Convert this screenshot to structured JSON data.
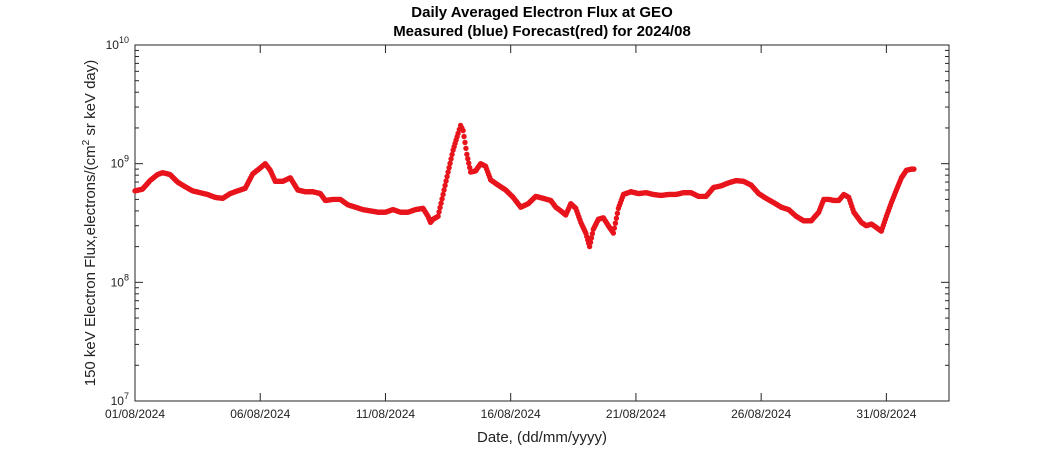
{
  "chart_data": {
    "type": "scatter",
    "title_line1": "Daily Averaged Electron Flux at GEO",
    "title_line2": "Measured (blue) Forecast(red) for 2024/08",
    "xlabel": "Date, (dd/mm/yyyy)",
    "ylabel": "150 keV Electron Flux,electrons/(cm² sr keV day)",
    "ylabel_parts": {
      "before": "150 keV Electron Flux,electrons/(cm",
      "sup": "2",
      "after": " sr keV day)"
    },
    "y_scale": "log",
    "ylim": [
      10000000,
      10000000000
    ],
    "y_ticks": [
      {
        "value": 10000000,
        "base": "10",
        "exp": "7"
      },
      {
        "value": 100000000,
        "base": "10",
        "exp": "8"
      },
      {
        "value": 1000000000,
        "base": "10",
        "exp": "9"
      },
      {
        "value": 10000000000,
        "base": "10",
        "exp": "10"
      }
    ],
    "x_unit": "day of August 2024",
    "xlim": [
      1,
      33.5
    ],
    "x_ticks": [
      {
        "value": 1,
        "label": "01/08/2024"
      },
      {
        "value": 6,
        "label": "06/08/2024"
      },
      {
        "value": 11,
        "label": "11/08/2024"
      },
      {
        "value": 16,
        "label": "16/08/2024"
      },
      {
        "value": 21,
        "label": "21/08/2024"
      },
      {
        "value": 26,
        "label": "26/08/2024"
      },
      {
        "value": 31,
        "label": "31/08/2024"
      }
    ],
    "grid": false,
    "series": [
      {
        "color": "#e8141c",
        "points": [
          [
            1.0,
            590000000.0
          ],
          [
            1.3,
            610000000.0
          ],
          [
            1.6,
            720000000.0
          ],
          [
            1.9,
            810000000.0
          ],
          [
            2.1,
            840000000.0
          ],
          [
            2.4,
            810000000.0
          ],
          [
            2.7,
            700000000.0
          ],
          [
            3.0,
            640000000.0
          ],
          [
            3.3,
            590000000.0
          ],
          [
            3.6,
            570000000.0
          ],
          [
            3.9,
            550000000.0
          ],
          [
            4.2,
            520000000.0
          ],
          [
            4.5,
            510000000.0
          ],
          [
            4.8,
            560000000.0
          ],
          [
            5.1,
            590000000.0
          ],
          [
            5.4,
            620000000.0
          ],
          [
            5.7,
            820000000.0
          ],
          [
            6.0,
            920000000.0
          ],
          [
            6.2,
            1000000000.0
          ],
          [
            6.4,
            880000000.0
          ],
          [
            6.6,
            710000000.0
          ],
          [
            6.9,
            710000000.0
          ],
          [
            7.2,
            760000000.0
          ],
          [
            7.5,
            600000000.0
          ],
          [
            7.8,
            580000000.0
          ],
          [
            8.1,
            580000000.0
          ],
          [
            8.4,
            560000000.0
          ],
          [
            8.6,
            490000000.0
          ],
          [
            8.9,
            500000000.0
          ],
          [
            9.2,
            500000000.0
          ],
          [
            9.5,
            450000000.0
          ],
          [
            9.8,
            430000000.0
          ],
          [
            10.1,
            410000000.0
          ],
          [
            10.4,
            400000000.0
          ],
          [
            10.7,
            390000000.0
          ],
          [
            11.0,
            390000000.0
          ],
          [
            11.3,
            410000000.0
          ],
          [
            11.6,
            390000000.0
          ],
          [
            11.9,
            390000000.0
          ],
          [
            12.2,
            410000000.0
          ],
          [
            12.5,
            420000000.0
          ],
          [
            12.7,
            360000000.0
          ],
          [
            12.8,
            320000000.0
          ],
          [
            12.9,
            340000000.0
          ],
          [
            13.1,
            360000000.0
          ],
          [
            13.3,
            550000000.0
          ],
          [
            13.5,
            850000000.0
          ],
          [
            13.7,
            1300000000.0
          ],
          [
            13.9,
            1800000000.0
          ],
          [
            14.0,
            2100000000.0
          ],
          [
            14.1,
            1900000000.0
          ],
          [
            14.25,
            1200000000.0
          ],
          [
            14.4,
            850000000.0
          ],
          [
            14.6,
            870000000.0
          ],
          [
            14.8,
            1000000000.0
          ],
          [
            15.0,
            950000000.0
          ],
          [
            15.2,
            730000000.0
          ],
          [
            15.5,
            660000000.0
          ],
          [
            15.8,
            600000000.0
          ],
          [
            16.1,
            520000000.0
          ],
          [
            16.4,
            430000000.0
          ],
          [
            16.7,
            460000000.0
          ],
          [
            17.0,
            530000000.0
          ],
          [
            17.3,
            510000000.0
          ],
          [
            17.6,
            490000000.0
          ],
          [
            17.8,
            430000000.0
          ],
          [
            18.0,
            400000000.0
          ],
          [
            18.2,
            370000000.0
          ],
          [
            18.4,
            460000000.0
          ],
          [
            18.6,
            420000000.0
          ],
          [
            18.8,
            320000000.0
          ],
          [
            19.0,
            260000000.0
          ],
          [
            19.15,
            200000000.0
          ],
          [
            19.3,
            280000000.0
          ],
          [
            19.5,
            340000000.0
          ],
          [
            19.7,
            350000000.0
          ],
          [
            19.9,
            300000000.0
          ],
          [
            20.1,
            260000000.0
          ],
          [
            20.3,
            420000000.0
          ],
          [
            20.5,
            550000000.0
          ],
          [
            20.8,
            580000000.0
          ],
          [
            21.1,
            560000000.0
          ],
          [
            21.4,
            570000000.0
          ],
          [
            21.7,
            550000000.0
          ],
          [
            22.0,
            540000000.0
          ],
          [
            22.3,
            550000000.0
          ],
          [
            22.6,
            550000000.0
          ],
          [
            22.9,
            570000000.0
          ],
          [
            23.2,
            570000000.0
          ],
          [
            23.5,
            530000000.0
          ],
          [
            23.8,
            530000000.0
          ],
          [
            24.1,
            630000000.0
          ],
          [
            24.4,
            650000000.0
          ],
          [
            24.7,
            690000000.0
          ],
          [
            25.0,
            720000000.0
          ],
          [
            25.3,
            710000000.0
          ],
          [
            25.6,
            660000000.0
          ],
          [
            25.9,
            560000000.0
          ],
          [
            26.2,
            510000000.0
          ],
          [
            26.5,
            470000000.0
          ],
          [
            26.8,
            430000000.0
          ],
          [
            27.1,
            410000000.0
          ],
          [
            27.4,
            360000000.0
          ],
          [
            27.7,
            330000000.0
          ],
          [
            28.0,
            330000000.0
          ],
          [
            28.3,
            390000000.0
          ],
          [
            28.5,
            500000000.0
          ],
          [
            28.7,
            500000000.0
          ],
          [
            28.9,
            490000000.0
          ],
          [
            29.1,
            490000000.0
          ],
          [
            29.3,
            550000000.0
          ],
          [
            29.5,
            520000000.0
          ],
          [
            29.7,
            390000000.0
          ],
          [
            30.0,
            320000000.0
          ],
          [
            30.2,
            300000000.0
          ],
          [
            30.4,
            310000000.0
          ],
          [
            30.6,
            290000000.0
          ],
          [
            30.8,
            270000000.0
          ],
          [
            31.0,
            360000000.0
          ],
          [
            31.2,
            470000000.0
          ],
          [
            31.4,
            600000000.0
          ],
          [
            31.6,
            760000000.0
          ],
          [
            31.8,
            880000000.0
          ],
          [
            32.0,
            900000000.0
          ],
          [
            32.1,
            900000000.0
          ]
        ]
      }
    ]
  }
}
